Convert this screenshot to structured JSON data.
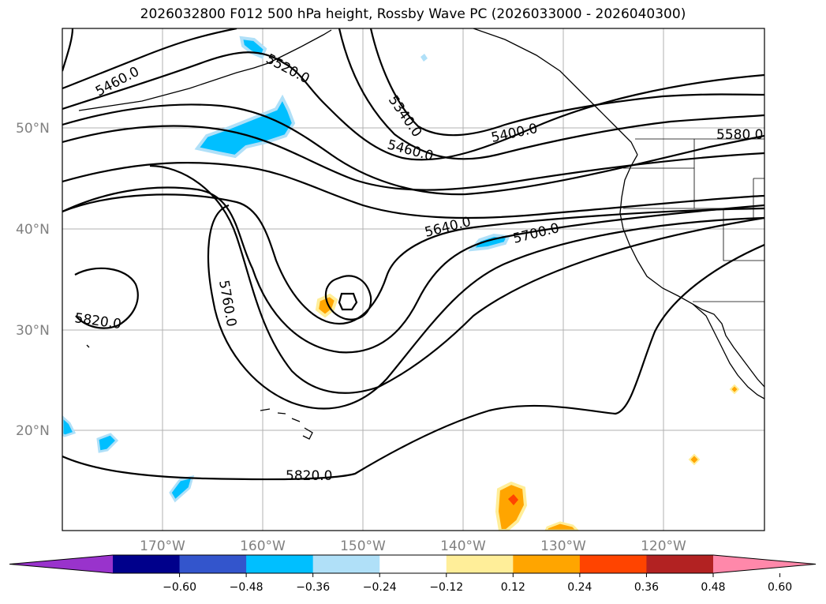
{
  "title": "2026032800 F012 500 hPa height, Rossby Wave PC (2026033000 - 2026040300)",
  "map": {
    "lat_labels": [
      "50°N",
      "40°N",
      "30°N",
      "20°N"
    ],
    "lon_labels": [
      "170°W",
      "160°W",
      "150°W",
      "140°W",
      "130°W",
      "120°W"
    ]
  },
  "contour_labels": [
    {
      "text": "5460.0"
    },
    {
      "text": "5520.0"
    },
    {
      "text": "5340.0"
    },
    {
      "text": "5460.0"
    },
    {
      "text": "5400.0"
    },
    {
      "text": "5580.0"
    },
    {
      "text": "5640.0"
    },
    {
      "text": "5700.0"
    },
    {
      "text": "5760.0"
    },
    {
      "text": "5820.0"
    },
    {
      "text": "5820.0"
    }
  ],
  "colorbar": {
    "ticks": [
      "−0.60",
      "−0.48",
      "−0.36",
      "−0.24",
      "−0.12",
      "0.12",
      "0.24",
      "0.36",
      "0.48",
      "0.60"
    ],
    "colors": [
      "#9933cc",
      "#00008b",
      "#3355cc",
      "#00bfff",
      "#b0e0f8",
      "#ffffff",
      "#ffee99",
      "#ffa500",
      "#ff4400",
      "#b22222",
      "#ff88aa"
    ]
  }
}
